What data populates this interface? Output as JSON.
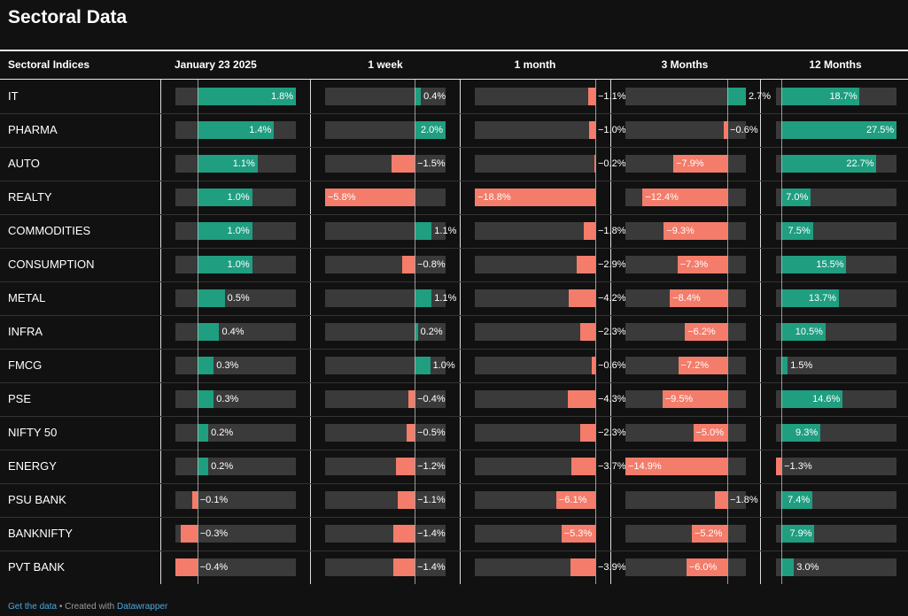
{
  "title": "Sectoral Data",
  "footer": {
    "get_data": "Get the data",
    "created_with": " • Created with ",
    "tool": "Datawrapper"
  },
  "colors": {
    "positive": "#1f9e80",
    "negative": "#f47c6a",
    "track": "#3a3a3a"
  },
  "chart_data": {
    "type": "table",
    "label_header": "Sectoral Indices",
    "columns": [
      "January 23 2025",
      "1 week",
      "1 month",
      "3 Months",
      "12 Months"
    ],
    "rows": [
      {
        "label": "IT",
        "values": [
          1.8,
          0.4,
          -1.1,
          2.7,
          18.7
        ]
      },
      {
        "label": "PHARMA",
        "values": [
          1.4,
          2.0,
          -1.0,
          -0.6,
          27.5
        ]
      },
      {
        "label": "AUTO",
        "values": [
          1.1,
          -1.5,
          -0.2,
          -7.9,
          22.7
        ]
      },
      {
        "label": "REALTY",
        "values": [
          1.0,
          -5.8,
          -18.8,
          -12.4,
          7.0
        ]
      },
      {
        "label": "COMMODITIES",
        "values": [
          1.0,
          1.1,
          -1.8,
          -9.3,
          7.5
        ]
      },
      {
        "label": "CONSUMPTION",
        "values": [
          1.0,
          -0.8,
          -2.9,
          -7.3,
          15.5
        ]
      },
      {
        "label": "METAL",
        "values": [
          0.5,
          1.1,
          -4.2,
          -8.4,
          13.7
        ]
      },
      {
        "label": "INFRA",
        "values": [
          0.4,
          0.2,
          -2.3,
          -6.2,
          10.5
        ]
      },
      {
        "label": "FMCG",
        "values": [
          0.3,
          1.0,
          -0.6,
          -7.2,
          1.5
        ]
      },
      {
        "label": "PSE",
        "values": [
          0.3,
          -0.4,
          -4.3,
          -9.5,
          14.6
        ]
      },
      {
        "label": "NIFTY 50",
        "values": [
          0.2,
          -0.5,
          -2.3,
          -5.0,
          9.3
        ]
      },
      {
        "label": "ENERGY",
        "values": [
          0.2,
          -1.2,
          -3.7,
          -14.9,
          -1.3
        ]
      },
      {
        "label": "PSU BANK",
        "values": [
          -0.1,
          -1.1,
          -6.1,
          -1.8,
          7.4
        ]
      },
      {
        "label": "BANKNIFTY",
        "values": [
          -0.3,
          -1.4,
          -5.3,
          -5.2,
          7.9
        ]
      },
      {
        "label": "PVT BANK",
        "values": [
          -0.4,
          -1.4,
          -3.9,
          -6.0,
          3.0
        ]
      }
    ],
    "column_ranges": [
      [
        -0.4,
        1.8
      ],
      [
        -5.8,
        2.0
      ],
      [
        -18.8,
        0.0
      ],
      [
        -14.9,
        2.7
      ],
      [
        -1.3,
        27.5
      ]
    ]
  }
}
